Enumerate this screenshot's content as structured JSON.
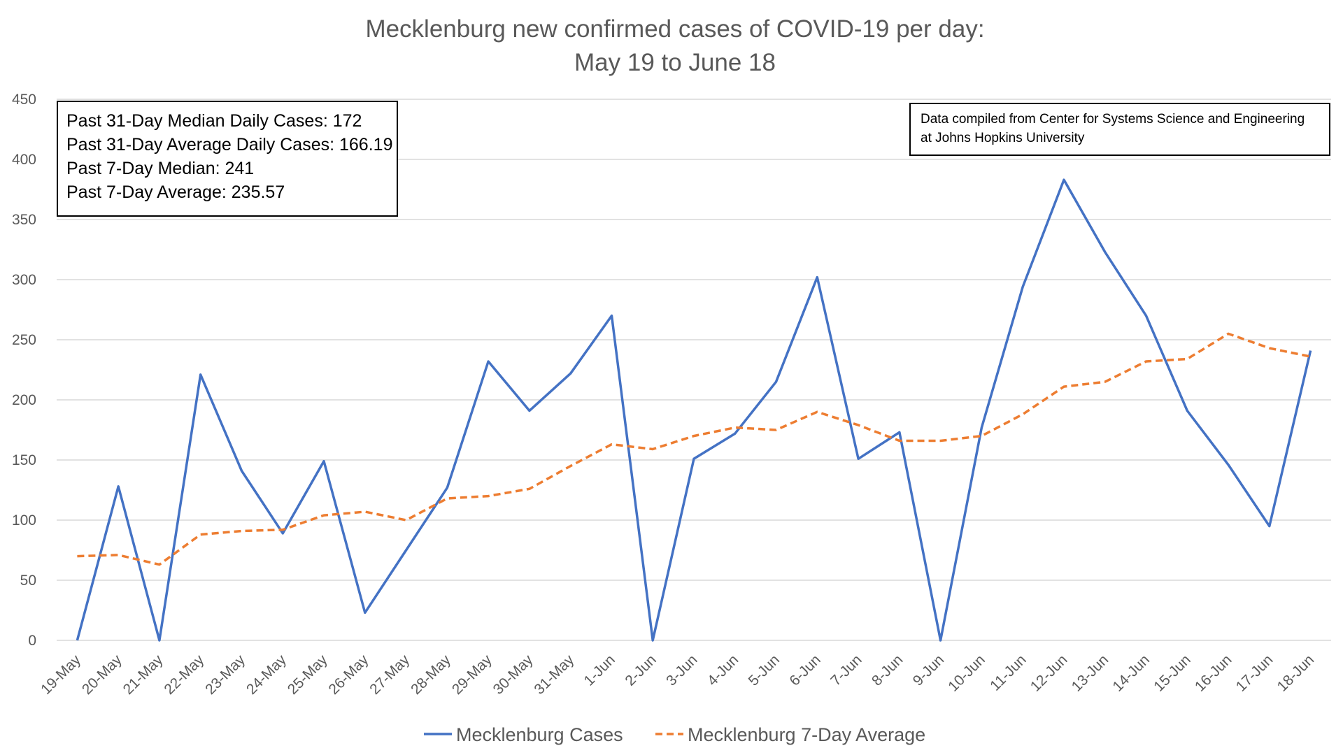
{
  "chart_data": {
    "type": "line",
    "title": "Mecklenburg new confirmed cases of COVID-19 per day:",
    "subtitle": "May 19 to June 18",
    "xlabel": "",
    "ylabel": "",
    "ylim": [
      0,
      450
    ],
    "yticks": [
      0,
      50,
      100,
      150,
      200,
      250,
      300,
      350,
      400,
      450
    ],
    "grid": true,
    "legend": "bottom",
    "categories": [
      "19-May",
      "20-May",
      "21-May",
      "22-May",
      "23-May",
      "24-May",
      "25-May",
      "26-May",
      "27-May",
      "28-May",
      "29-May",
      "30-May",
      "31-May",
      "1-Jun",
      "2-Jun",
      "3-Jun",
      "4-Jun",
      "5-Jun",
      "6-Jun",
      "7-Jun",
      "8-Jun",
      "9-Jun",
      "10-Jun",
      "11-Jun",
      "12-Jun",
      "13-Jun",
      "14-Jun",
      "15-Jun",
      "16-Jun",
      "17-Jun",
      "18-Jun"
    ],
    "series": [
      {
        "name": "Mecklenburg Cases",
        "color": "#4472c4",
        "style": "solid",
        "values": [
          0,
          128,
          0,
          221,
          141,
          89,
          149,
          23,
          75,
          127,
          232,
          191,
          222,
          270,
          0,
          151,
          172,
          215,
          302,
          151,
          173,
          0,
          177,
          294,
          383,
          323,
          270,
          191,
          146,
          95,
          241
        ]
      },
      {
        "name": "Mecklenburg 7-Day Average",
        "color": "#ed7d31",
        "style": "dashed",
        "values": [
          70,
          71,
          63,
          88,
          91,
          92,
          104,
          107,
          100,
          118,
          120,
          126,
          145,
          163,
          159,
          170,
          177,
          175,
          190,
          179,
          166,
          166,
          170,
          188,
          211,
          215,
          232,
          234,
          255,
          243,
          236
        ]
      }
    ]
  },
  "annotations": {
    "stats_lines": [
      "Past 31-Day Median Daily Cases: 172",
      "Past 31-Day Average Daily Cases: 166.19",
      "Past 7-Day Median: 241",
      "Past 7-Day Average: 235.57"
    ],
    "source_lines": [
      "Data compiled from Center for Systems Science and Engineering",
      "at Johns Hopkins University"
    ]
  }
}
